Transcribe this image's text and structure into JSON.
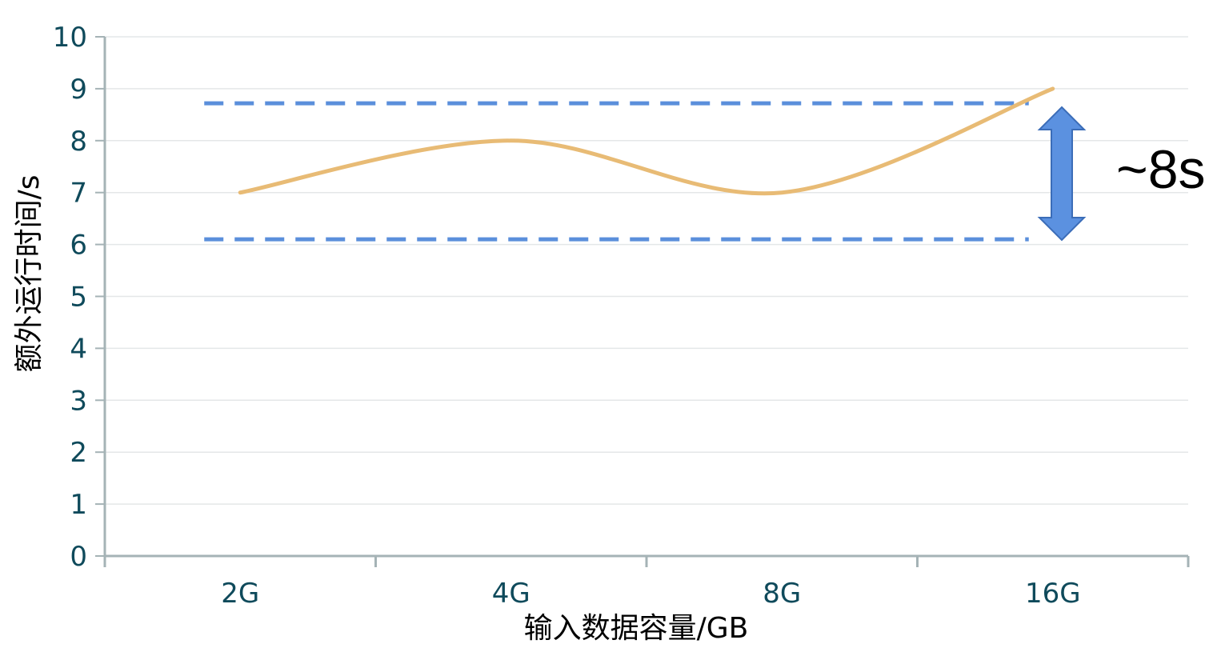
{
  "chart_data": {
    "type": "line",
    "categories": [
      "2G",
      "4G",
      "8G",
      "16G"
    ],
    "series": [
      {
        "values": [
          7,
          8,
          7,
          9
        ],
        "color": "#E8BB75",
        "smooth": true
      }
    ],
    "title": "",
    "xlabel": "输入数据容量/GB",
    "ylabel": "额外运行时间/s",
    "ylim": [
      0,
      10
    ],
    "yticks": [
      "0",
      "1",
      "2",
      "3",
      "4",
      "5",
      "6",
      "7",
      "8",
      "9",
      "10"
    ],
    "grid": true,
    "reference_lines": [
      {
        "y": 8.72,
        "color": "#5B8FDB",
        "style": "dashed"
      },
      {
        "y": 6.1,
        "color": "#5B8FDB",
        "style": "dashed"
      }
    ],
    "annotation": {
      "text": "~8s",
      "arrow_color": "#5B91E0",
      "arrow_stroke": "#3B6DB8"
    },
    "colors": {
      "axis": "#A5B3B6",
      "grid": "#E4E7E8",
      "tick_text": "#0F4A5B"
    }
  }
}
